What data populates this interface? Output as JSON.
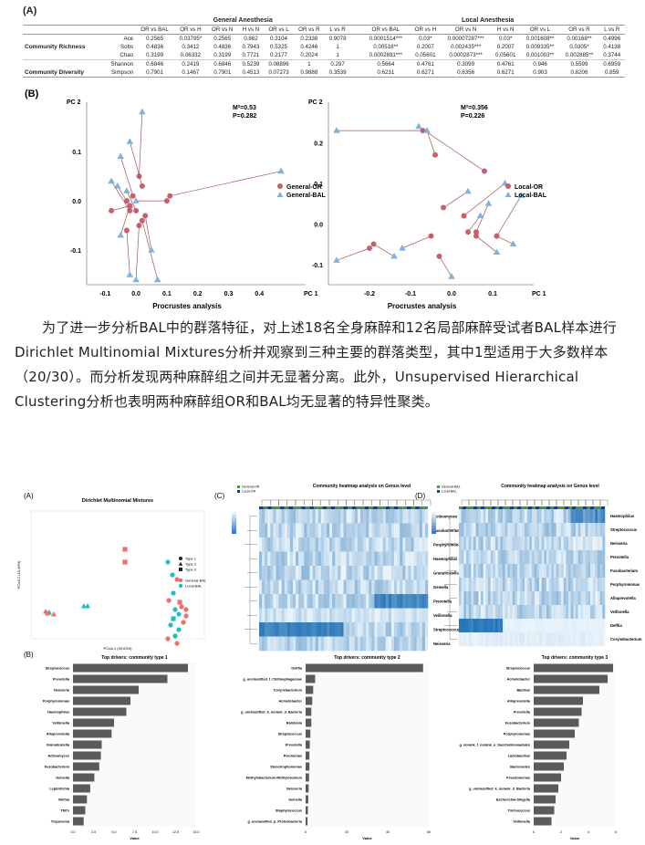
{
  "panelA_label": "(A)",
  "panelB_label": "(B)",
  "table": {
    "group_general": "General Anesthesia",
    "group_local": "Local Anesthesia",
    "columns": [
      "OR vs BAL",
      "OR vs H",
      "OR vs N",
      "H vs N",
      "OR vs L",
      "OR vs R",
      "L vs R",
      "OR vs BAL",
      "OR vs H",
      "OR vs N",
      "H vs N",
      "OR vs L",
      "OR vs R",
      "L vs R"
    ],
    "categories": [
      {
        "name": "Community Richness",
        "rows": [
          {
            "metric": "Ace",
            "values": [
              "0.2565",
              "0.03795*",
              "0.2565",
              "0.862",
              "0.3104",
              "0.2338",
              "0.9078",
              "0.0001514***",
              "0.03*",
              "0.00007287***",
              "0.03*",
              "0.001608**",
              "0.00168**",
              "0.4996"
            ]
          },
          {
            "metric": "Sobs",
            "values": [
              "0.4836",
              "0.3412",
              "0.4836",
              "0.7943",
              "0.5325",
              "0.4246",
              "1",
              "0.00518**",
              "0.2007",
              "0.002435***",
              "0.2007",
              "0.009335**",
              "0.0305*",
              "0.4138"
            ]
          },
          {
            "metric": "Chao",
            "values": [
              "0.3199",
              "0.06332",
              "0.3199",
              "0.7721",
              "0.2177",
              "0.2024",
              "1",
              "0.0002891***",
              "0.05601",
              "0.0002873***",
              "0.05601",
              "0.001003**",
              "0.002885**",
              "0.3744"
            ]
          }
        ]
      },
      {
        "name": "Community Diversity",
        "rows": [
          {
            "metric": "Shannon",
            "values": [
              "0.6846",
              "0.2419",
              "0.6846",
              "0.5239",
              "0.08896",
              "1",
              "0.297",
              "0.5664",
              "0.4761",
              "0.3099",
              "0.4761",
              "0.946",
              "0.5599",
              "0.6959"
            ]
          },
          {
            "metric": "Simpson",
            "values": [
              "0.7901",
              "0.1467",
              "0.7901",
              "0.4513",
              "0.07273",
              "0.9888",
              "0.3539",
              "0.6231",
              "0.6271",
              "0.6356",
              "0.6271",
              "0.903",
              "0.8206",
              "0.859"
            ]
          }
        ]
      }
    ]
  },
  "procrustes": [
    {
      "ylabel": "PC 2",
      "xlabel": "PC 1",
      "title": "Procrustes analysis",
      "m2": "M²=0.53",
      "p": "P=0.282",
      "legend": [
        "General-OR",
        "General-BAL"
      ],
      "xticks": [
        "-0.1",
        "0.0",
        "0.1",
        "0.2",
        "0.3",
        "0.4"
      ],
      "yticks": [
        "0.1",
        "0.0",
        "-0.1"
      ]
    },
    {
      "ylabel": "PC 2",
      "xlabel": "PC 1",
      "title": "Procrustes analysis",
      "m2": "M²=0.356",
      "p": "P=0.226",
      "legend": [
        "Local-OR",
        "Local-BAL"
      ],
      "xticks": [
        "-0.2",
        "-0.1",
        "0.0",
        "0.1"
      ],
      "yticks": [
        "0.2",
        "0.1",
        "0.0",
        "-0.1"
      ]
    }
  ],
  "paragraph": "为了进一步分析BAL中的群落特征，对上述18名全身麻醉和12名局部麻醉受试者BAL样本进行Dirichlet Multinomial Mixtures分析并观察到三种主要的群落类型，其中1型适用于大多数样本（20/30）。而分析发现两种麻醉组之间并无显著分离。此外，Unsupervised Hierarchical Clustering分析也表明两种麻醉组OR和BAL均无显著的特异性聚类。",
  "fig2": {
    "labelA": "(A)",
    "labelB": "(B)",
    "labelC": "(C)",
    "labelD": "(D)",
    "dmm_title": "Dirichlet Multinomial Mixtures",
    "dmm_xlabel": "PCoA 1 (39.63%)",
    "dmm_ylabel": "PCoA 2 (10.49%)",
    "dmm_types": [
      "Type 1",
      "Type 2",
      "Type 3"
    ],
    "dmm_groups": [
      "General-BAL",
      "Local-BAL"
    ],
    "heatmap_title": "Community heatmap analysis on Genus level",
    "heatC_legend": [
      "General-OR",
      "Local-OR"
    ],
    "heatD_legend": [
      "General-BAL",
      "Local-BAL"
    ],
    "heatC_genera": [
      "Actinomyces",
      "Fusobacterium",
      "Porphyromonas",
      "Haemophilus",
      "Granulicatella",
      "Gemella",
      "Prevotella",
      "Veillonella",
      "Streptococcus",
      "Neisseria"
    ],
    "heatD_genera": [
      "Haemophilus",
      "Streptococcus",
      "Neisseria",
      "Prevotella",
      "Fusobacterium",
      "Porphyromonas",
      "Alloprevotella",
      "Veillonella",
      "Delftia",
      "Corynebacterium"
    ],
    "drivers": [
      {
        "title": "Top drivers: community type 1",
        "xlabel": "Value",
        "labels": [
          "Streptococcus",
          "Prevotella",
          "Neisseria",
          "Porphyromonas",
          "Haemophilus",
          "Veillonella",
          "Alloprevotella",
          "Granulicatella",
          "Actinomyces",
          "Fusobacterium",
          "Gemella",
          "Leptotrichia",
          "Rothia",
          "TM7x",
          "Treponema"
        ],
        "values": [
          14,
          11.5,
          8,
          7,
          6.5,
          5,
          4.7,
          3.5,
          3.4,
          3.2,
          2.6,
          2.1,
          1.7,
          1.5,
          1.3
        ],
        "xticks": [
          "0.0",
          "2.5",
          "5.0",
          "7.5",
          "10.0",
          "12.5",
          "15.0"
        ],
        "xmax": 15
      },
      {
        "title": "Top drivers: community type 2",
        "xlabel": "Value",
        "labels": [
          "Delftia",
          "g_unclassified_f_Chitinophagaceae",
          "Corynebacterium",
          "Acinetobacter",
          "g_unclassified_k_norank_d_Bacteria",
          "Ralstonia",
          "Streptococcus",
          "Prevotella",
          "Pelomonas",
          "Stenotrophomonas",
          "Methylobacterium-Methylorubrum",
          "Neisseria",
          "Gemella",
          "Staphylococcus",
          "g_unclassified_p_Proteobacteria"
        ],
        "values": [
          62,
          5,
          4,
          3.5,
          3,
          3,
          2.5,
          2.2,
          2,
          2,
          1.8,
          1.6,
          1.4,
          1.2,
          1
        ],
        "xticks": [
          "0",
          "20",
          "40",
          "60"
        ],
        "xmax": 65
      },
      {
        "title": "Top drivers: community type 3",
        "xlabel": "Value",
        "labels": [
          "Streptococcus",
          "Acinetobacter",
          "Bacillus",
          "Alloprevotella",
          "Prevotella",
          "Fusobacterium",
          "Porphyromonas",
          "g_norank_f_norank_o_Saccharimonadales",
          "Lactobacillus",
          "Bacteroides",
          "Pseudomonas",
          "g_unclassified_k_norank_d_Bacteria",
          "Escherichia-Shigella",
          "Trichococcus",
          "Veillonella"
        ],
        "values": [
          5.8,
          5.4,
          4.8,
          3.6,
          3.5,
          3.3,
          3.0,
          2.6,
          2.4,
          2.2,
          2.0,
          1.8,
          1.6,
          1.5,
          1.3
        ],
        "xticks": [
          "0",
          "2",
          "4",
          "6"
        ],
        "xmax": 6
      }
    ]
  },
  "colors": {
    "red": "#c8606c",
    "blue": "#7fb2dc",
    "salmon": "#ef6f6a",
    "teal": "#1fbfc3",
    "bar": "#5a5a5a",
    "green": "#3a9c3a",
    "navy": "#2030b0",
    "heatdark": "#1f6fb4",
    "heatlight": "#eaf4fb"
  }
}
